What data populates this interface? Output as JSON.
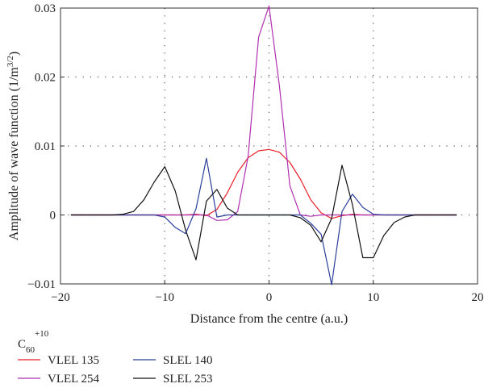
{
  "chart_data": {
    "type": "line",
    "xlabel": "Distance from the centre (a.u.)",
    "ylabel": "Amplitude of wave function (1/m",
    "ylabel_sup": "3/2",
    "ylabel_end": ")",
    "xlim": [
      -20,
      20
    ],
    "ylim": [
      -0.01,
      0.03
    ],
    "x_ticks": [
      -20,
      -10,
      0,
      10,
      20
    ],
    "x_tick_labels": [
      "−20",
      "−10",
      "0",
      "10",
      "20"
    ],
    "y_ticks": [
      -0.01,
      0,
      0.01,
      0.02,
      0.03
    ],
    "y_tick_labels": [
      "−0.01",
      "0",
      "0.01",
      "0.02",
      "0.03"
    ],
    "grid": true,
    "legend_title": "C",
    "legend_title_sub": "60",
    "legend_title_sup": "+10",
    "legend_placement": "bottom-left, below plot",
    "series": [
      {
        "name": "VLEL 135",
        "color": "#e8202a",
        "x": [
          -19,
          -18,
          -17,
          -16,
          -15,
          -14,
          -13,
          -12,
          -11,
          -10,
          -9,
          -8,
          -7,
          -6,
          -5,
          -4,
          -3,
          -2,
          -1,
          0,
          1,
          2,
          3,
          4,
          5,
          6,
          7,
          8,
          9,
          10,
          11,
          12,
          13,
          14,
          15,
          16,
          17,
          18
        ],
        "y": [
          0,
          0,
          0,
          0,
          0,
          0,
          0,
          0,
          0,
          0,
          0,
          0,
          0.0001,
          -0.0001,
          0.0008,
          0.0032,
          0.0062,
          0.0083,
          0.0093,
          0.0095,
          0.0091,
          0.0076,
          0.0052,
          0.0022,
          0.0003,
          -0.0005,
          -0.0001,
          0.0001,
          0,
          0,
          0,
          0,
          0,
          0,
          0,
          0,
          0,
          0
        ]
      },
      {
        "name": "VLEL 254",
        "color": "#b02fb0",
        "x": [
          -19,
          -18,
          -17,
          -16,
          -15,
          -14,
          -13,
          -12,
          -11,
          -10,
          -9,
          -8,
          -7,
          -6,
          -5,
          -4,
          -3,
          -2,
          -1,
          0,
          1,
          2,
          3,
          4,
          5,
          6,
          7,
          8,
          9,
          10,
          11,
          12,
          13,
          14,
          15,
          16,
          17,
          18
        ],
        "y": [
          0,
          0,
          0,
          0,
          0,
          0,
          0,
          0,
          0,
          0,
          0,
          0,
          0,
          0,
          -0.0008,
          -0.0007,
          0.0005,
          0.0085,
          0.0258,
          0.0303,
          0.0187,
          0.0042,
          0,
          -0.0002,
          0,
          0,
          0,
          0,
          0,
          0,
          0,
          0,
          0,
          0,
          0,
          0,
          0,
          0
        ]
      },
      {
        "name": "SLEL 140",
        "color": "#2b3f9a",
        "x": [
          -19,
          -18,
          -17,
          -16,
          -15,
          -14,
          -13,
          -12,
          -11,
          -10,
          -9,
          -8,
          -7,
          -6,
          -5,
          -4,
          -3,
          -2,
          -1,
          0,
          1,
          2,
          3,
          4,
          5,
          6,
          7,
          8,
          9,
          10,
          11,
          12,
          13,
          14,
          15,
          16,
          17,
          18
        ],
        "y": [
          0,
          0,
          0,
          0,
          0,
          0,
          0,
          0,
          0,
          -0.0003,
          -0.0018,
          -0.0027,
          0.0009,
          0.0082,
          -0.0003,
          0,
          0,
          0,
          0,
          0,
          0,
          0,
          0,
          -0.0012,
          -0.0028,
          -0.0101,
          0.0005,
          0.003,
          0.0011,
          0.0001,
          0,
          0,
          0,
          0,
          0,
          0,
          0,
          0
        ]
      },
      {
        "name": "SLEL 253",
        "color": "#111111",
        "x": [
          -19,
          -18,
          -17,
          -16,
          -15,
          -14,
          -13,
          -12,
          -11,
          -10,
          -9,
          -8,
          -7,
          -6,
          -5,
          -4,
          -3,
          -2,
          -1,
          0,
          1,
          2,
          3,
          4,
          5,
          6,
          7,
          8,
          9,
          10,
          11,
          12,
          13,
          14,
          15,
          16,
          17,
          18
        ],
        "y": [
          0,
          0,
          0,
          0,
          0,
          0.0001,
          0.0005,
          0.0022,
          0.0048,
          0.007,
          0.0035,
          -0.0022,
          -0.0065,
          0.002,
          0.0037,
          0.001,
          0,
          0,
          0,
          0,
          0,
          0,
          -0.0004,
          -0.0015,
          -0.0039,
          -0.0005,
          0.0072,
          0.0015,
          -0.0062,
          -0.0062,
          -0.003,
          -0.0011,
          -0.0003,
          0,
          0,
          0,
          0,
          0
        ]
      }
    ]
  }
}
